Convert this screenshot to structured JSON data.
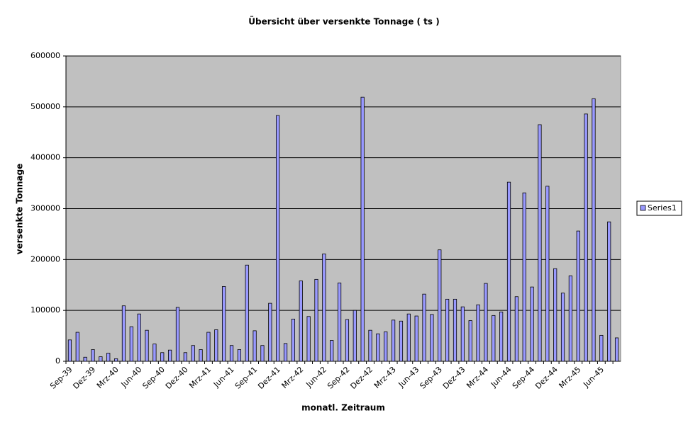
{
  "chart_data": {
    "type": "bar",
    "title": "Übersicht über versenkte Tonnage ( ts )",
    "x_label": "monatl. Zeitraum",
    "y_label": "versenkte Tonnage",
    "categories": [
      "Sep-39",
      null,
      null,
      "Dez-39",
      null,
      null,
      "Mrz-40",
      null,
      null,
      "Jun-40",
      null,
      null,
      "Sep-40",
      null,
      null,
      "Dez-40",
      null,
      null,
      "Mrz-41",
      null,
      null,
      "Jun-41",
      null,
      null,
      "Sep-41",
      null,
      null,
      "Dez-41",
      null,
      null,
      "Mrz-42",
      null,
      null,
      "Jun-42",
      null,
      null,
      "Sep-42",
      null,
      null,
      "Dez-42",
      null,
      null,
      "Mrz-43",
      null,
      null,
      "Jun-43",
      null,
      null,
      "Sep-43",
      null,
      null,
      "Dez-43",
      null,
      null,
      "Mrz-44",
      null,
      null,
      "Jun-44",
      null,
      null,
      "Sep-44",
      null,
      null,
      "Dez-44",
      null,
      null,
      "Mrz-45",
      null,
      null,
      "Jun-45",
      null,
      null
    ],
    "series": [
      {
        "name": "Series1",
        "color": "#9999ff",
        "values": [
          42000,
          57000,
          8000,
          23000,
          9000,
          16000,
          5000,
          109000,
          68000,
          93000,
          61000,
          34000,
          17000,
          22000,
          106000,
          17000,
          31000,
          23000,
          57000,
          62000,
          147000,
          31000,
          23000,
          189000,
          60000,
          31000,
          114000,
          483000,
          35000,
          83000,
          158000,
          88000,
          161000,
          211000,
          41000,
          154000,
          82000,
          100000,
          519000,
          61000,
          54000,
          58000,
          81000,
          79000,
          93000,
          89000,
          132000,
          92000,
          219000,
          122000,
          122000,
          107000,
          80000,
          111000,
          153000,
          90000,
          97000,
          352000,
          127000,
          331000,
          146000,
          465000,
          344000,
          182000,
          134000,
          168000,
          256000,
          486000,
          516000,
          51000,
          274000,
          46000
        ]
      }
    ],
    "ylim": [
      0,
      600000
    ],
    "yticks": [
      0,
      100000,
      200000,
      300000,
      400000,
      500000,
      600000
    ],
    "grid": true,
    "legend": "right"
  }
}
